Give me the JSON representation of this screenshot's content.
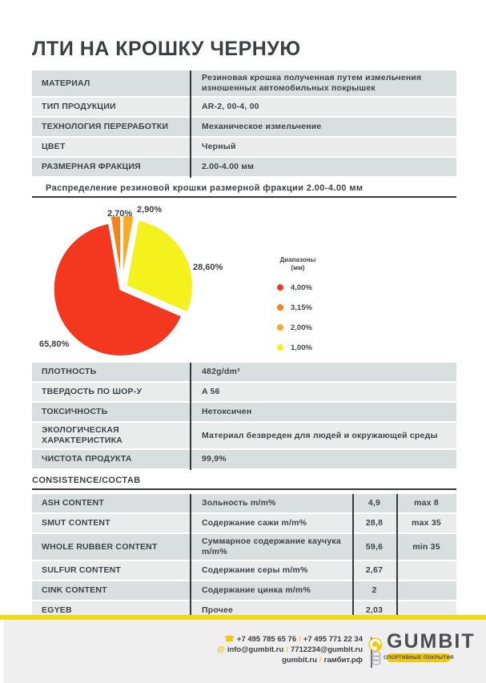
{
  "title": "ЛТИ НА КРОШКУ ЧЕРНУЮ",
  "tables": {
    "spec1": {
      "rows": [
        [
          "МАТЕРИАЛ",
          "Резиновая крошка полученная путем измельчения изношенных автомобильных покрышек"
        ],
        [
          "ТИП ПРОДУКЦИИ",
          "AR-2, 00-4, 00"
        ],
        [
          "ТЕХНОЛОГИЯ ПЕРЕРАБОТКИ",
          "Механическое измельчение"
        ],
        [
          "ЦВЕТ",
          "Черный"
        ],
        [
          "РАЗМЕРНАЯ ФРАКЦИЯ",
          "2.00-4.00 мм"
        ]
      ]
    },
    "spec2": {
      "rows": [
        [
          "ПЛОТНОСТЬ",
          "482g/dm³"
        ],
        [
          "ТВЕРДОСТЬ ПО ШОР-У",
          "A 56"
        ],
        [
          "ТОКСИЧНОСТЬ",
          "Нетоксичен"
        ],
        [
          "ЭКОЛОГИЧЕСКАЯ ХАРАКТЕРИСТИКА",
          "Материал безвреден для людей и окружающей среды"
        ],
        [
          "ЧИСТОТА ПРОДУКТА",
          "99,9%"
        ]
      ]
    },
    "composition": {
      "section_header": "CONSISTENCE/СОСТАВ",
      "rows": [
        [
          "ASH CONTENT",
          "Зольность m/m%",
          "4,9",
          "max 8"
        ],
        [
          "SMUT CONTENT",
          "Содержание сажи m/m%",
          "28,8",
          "max 35"
        ],
        [
          "WHOLE RUBBER CONTENT",
          "Суммарное содержание каучука m/m%",
          "59,6",
          "min 35"
        ],
        [
          "SULFUR CONTENT",
          "Содержание серы m/m%",
          "2,67",
          ""
        ],
        [
          "CINK CONTENT",
          "Содержание цинка m/m%",
          "2",
          ""
        ],
        [
          "EGYEB",
          "Прочее",
          "2,03",
          ""
        ]
      ]
    }
  },
  "chart_data": {
    "type": "pie",
    "title": "Распределение резиновой крошки размерной фракции 2.00-4.00 мм",
    "legend_title_line1": "Диапазоны",
    "legend_title_line2": "(мм)",
    "legend_position": "right",
    "start_angle_deg": 113.4,
    "slices": [
      {
        "label": "4,00%",
        "value": 65.8,
        "display": "65,80%",
        "color": "#f4381f"
      },
      {
        "label": "3,15%",
        "value": 2.7,
        "display": "2,70%",
        "color": "#f5821f"
      },
      {
        "label": "2,00%",
        "value": 2.9,
        "display": "2,90%",
        "color": "#faa928"
      },
      {
        "label": "1,00%",
        "value": 28.6,
        "display": "28,60%",
        "color": "#f5f11d"
      }
    ]
  },
  "footer": {
    "phone1": "+7 495 785 65 76",
    "phone2": "+7 495 771 22 34",
    "email1": "info@gumbit.ru",
    "email2": "7712234@gumbit.ru",
    "site1": "gumbit.ru",
    "site2": "гамбит.рф",
    "separator": "/",
    "at_symbol": "@",
    "phone_glyph": "☎",
    "logo_text": "GUMBIT",
    "logo_tagline": "СПОРТИВНЫЕ ПОКРЫТИЯ",
    "accent_yellow": "#f2d911"
  }
}
